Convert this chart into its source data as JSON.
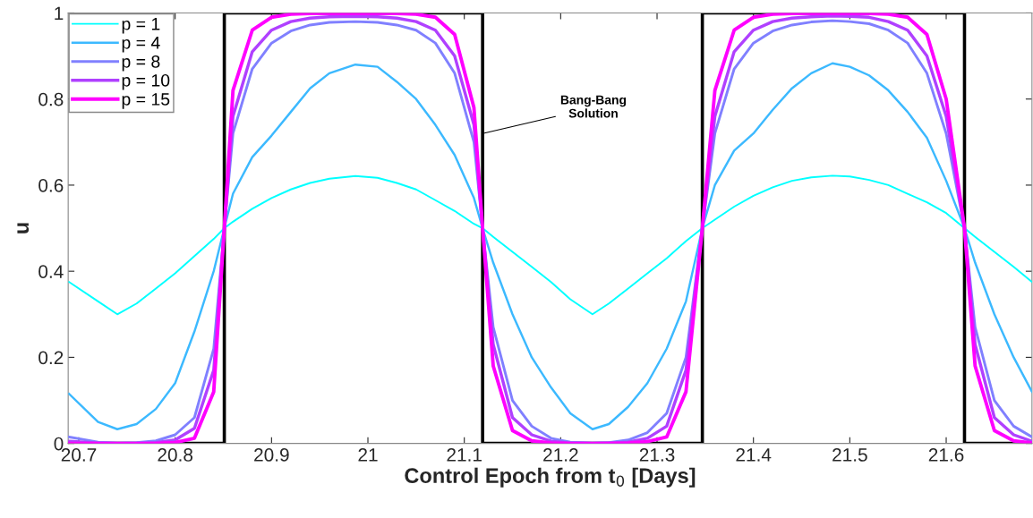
{
  "chart_data": {
    "type": "line",
    "xlabel": "Control Epoch from t$_{0}$ [Days]",
    "ylabel": "u",
    "x": [
      20.69,
      20.72,
      20.74,
      20.76,
      20.78,
      20.8,
      20.82,
      20.84,
      20.851,
      20.86,
      20.88,
      20.9,
      20.92,
      20.94,
      20.96,
      20.987,
      21.01,
      21.03,
      21.05,
      21.07,
      21.09,
      21.11,
      21.119,
      21.13,
      21.15,
      21.17,
      21.19,
      21.21,
      21.233,
      21.25,
      21.27,
      21.29,
      21.31,
      21.33,
      21.347,
      21.36,
      21.38,
      21.4,
      21.42,
      21.44,
      21.46,
      21.482,
      21.5,
      21.52,
      21.54,
      21.56,
      21.58,
      21.6,
      21.619,
      21.63,
      21.65,
      21.67,
      21.689
    ],
    "series": [
      {
        "name": "p = 1",
        "color": "#00ffff",
        "values": [
          0.375,
          0.33,
          0.3,
          0.325,
          0.36,
          0.395,
          0.435,
          0.475,
          0.5,
          0.515,
          0.545,
          0.57,
          0.59,
          0.605,
          0.615,
          0.621,
          0.617,
          0.605,
          0.59,
          0.565,
          0.54,
          0.51,
          0.5,
          0.48,
          0.445,
          0.41,
          0.375,
          0.335,
          0.3,
          0.325,
          0.36,
          0.395,
          0.43,
          0.47,
          0.5,
          0.52,
          0.55,
          0.575,
          0.595,
          0.61,
          0.618,
          0.622,
          0.62,
          0.612,
          0.6,
          0.58,
          0.56,
          0.535,
          0.5,
          0.48,
          0.445,
          0.41,
          0.375
        ]
      },
      {
        "name": "p = 4",
        "color": "#3cb9ff",
        "values": [
          0.115,
          0.05,
          0.033,
          0.045,
          0.08,
          0.14,
          0.26,
          0.4,
          0.5,
          0.58,
          0.665,
          0.715,
          0.77,
          0.825,
          0.86,
          0.88,
          0.875,
          0.84,
          0.8,
          0.74,
          0.67,
          0.57,
          0.5,
          0.42,
          0.3,
          0.2,
          0.13,
          0.07,
          0.033,
          0.045,
          0.085,
          0.14,
          0.22,
          0.33,
          0.5,
          0.6,
          0.68,
          0.72,
          0.775,
          0.825,
          0.86,
          0.883,
          0.875,
          0.855,
          0.82,
          0.77,
          0.71,
          0.61,
          0.5,
          0.42,
          0.3,
          0.2,
          0.12
        ]
      },
      {
        "name": "p = 8",
        "color": "#8080ff",
        "values": [
          0.015,
          0.003,
          0.001,
          0.002,
          0.006,
          0.02,
          0.06,
          0.22,
          0.5,
          0.72,
          0.87,
          0.93,
          0.958,
          0.972,
          0.978,
          0.98,
          0.978,
          0.972,
          0.96,
          0.93,
          0.86,
          0.7,
          0.5,
          0.27,
          0.1,
          0.04,
          0.012,
          0.003,
          0.001,
          0.002,
          0.008,
          0.025,
          0.07,
          0.2,
          0.5,
          0.72,
          0.87,
          0.93,
          0.958,
          0.972,
          0.979,
          0.982,
          0.98,
          0.975,
          0.96,
          0.93,
          0.86,
          0.72,
          0.5,
          0.27,
          0.1,
          0.04,
          0.015
        ]
      },
      {
        "name": "p = 10",
        "color": "#b040ff",
        "values": [
          0.005,
          0.001,
          0,
          0,
          0.002,
          0.008,
          0.035,
          0.17,
          0.5,
          0.76,
          0.91,
          0.96,
          0.98,
          0.988,
          0.991,
          0.992,
          0.991,
          0.988,
          0.98,
          0.96,
          0.9,
          0.74,
          0.5,
          0.23,
          0.06,
          0.02,
          0.005,
          0.001,
          0,
          0.001,
          0.003,
          0.012,
          0.04,
          0.17,
          0.5,
          0.76,
          0.91,
          0.96,
          0.98,
          0.988,
          0.991,
          0.993,
          0.992,
          0.99,
          0.98,
          0.96,
          0.9,
          0.76,
          0.5,
          0.23,
          0.06,
          0.02,
          0.005
        ]
      },
      {
        "name": "p = 15",
        "color": "#ff00ff",
        "values": [
          0,
          0,
          0,
          0,
          0,
          0.002,
          0.012,
          0.12,
          0.5,
          0.82,
          0.96,
          0.99,
          0.997,
          0.999,
          0.999,
          0.999,
          0.999,
          0.999,
          0.997,
          0.99,
          0.95,
          0.78,
          0.5,
          0.18,
          0.03,
          0.006,
          0.001,
          0,
          0,
          0,
          0.001,
          0.004,
          0.015,
          0.12,
          0.5,
          0.82,
          0.96,
          0.99,
          0.997,
          0.999,
          0.999,
          0.999,
          0.999,
          0.999,
          0.997,
          0.99,
          0.95,
          0.8,
          0.5,
          0.18,
          0.03,
          0.006,
          0.001
        ]
      },
      {
        "color": "#000000",
        "x": [
          20.689,
          20.851,
          20.851,
          21.119,
          21.119,
          21.347,
          21.347,
          21.619,
          21.619,
          21.689
        ],
        "values": [
          0,
          0,
          1,
          1,
          0,
          0,
          1,
          1,
          0,
          0
        ]
      }
    ],
    "annotations": [
      {
        "text": "Bang-Bang\nSolution",
        "x": 21.119,
        "y": 0.72
      }
    ],
    "xlim": [
      20.689,
      21.689
    ],
    "ylim": [
      0,
      1
    ],
    "xticks": [
      20.7,
      20.8,
      20.9,
      21,
      21.1,
      21.2,
      21.3,
      21.4,
      21.5,
      21.6
    ],
    "yticks": [
      0,
      0.2,
      0.4,
      0.6,
      0.8,
      1
    ],
    "grid": false,
    "legend": "top left"
  }
}
